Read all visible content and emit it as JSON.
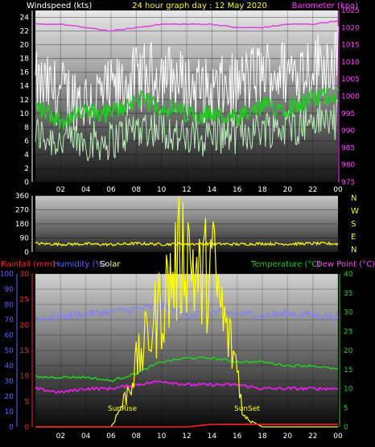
{
  "header": {
    "left": "Windspeed (kts)",
    "center": "24 hour graph day : 12 May 2020",
    "right": "Barometer (kpa)"
  },
  "colors": {
    "windspeed": "#ffffff",
    "windavg": "#22cc22",
    "gust": "#b8f0b8",
    "barometer": "#e040e0",
    "direction": "#ffff00",
    "rain": "#ff2020",
    "humidity": "#8080ff",
    "solar": "#ffff00",
    "temperature": "#22cc22",
    "dewpoint": "#e020e0",
    "axis_text": "#ff40ff",
    "rain_axis": "#ff2020",
    "humidity_axis": "#6060ff",
    "temp_axis": "#22cc22"
  },
  "chart_data": [
    {
      "type": "line",
      "title": "24 hour graph day : 12 May 2020",
      "ylabel_left": "Windspeed (kts)",
      "ylabel_right": "Barometer (kpa)",
      "xticks": [
        "02",
        "04",
        "06",
        "08",
        "10",
        "12",
        "14",
        "16",
        "18",
        "20",
        "22",
        "00"
      ],
      "y_left_ticks": [
        "0",
        "2",
        "4",
        "6",
        "8",
        "10",
        "12",
        "14",
        "16",
        "18",
        "20",
        "22",
        "24"
      ],
      "ylim_left": [
        0,
        25
      ],
      "y_right_ticks": [
        "975",
        "980",
        "985",
        "990",
        "995",
        "1000",
        "1005",
        "1010",
        "1015",
        "1020",
        "1025"
      ],
      "ylim_right": [
        975,
        1025
      ],
      "series": [
        {
          "name": "Windspeed",
          "x": [
            0,
            2,
            4,
            6,
            8,
            10,
            12,
            14,
            16,
            18,
            20,
            22,
            24
          ],
          "values": [
            14,
            13,
            12,
            13,
            15,
            16,
            14,
            13,
            14,
            16,
            16,
            17,
            18
          ]
        },
        {
          "name": "Wind average",
          "x": [
            0,
            2,
            4,
            6,
            8,
            10,
            12,
            14,
            16,
            18,
            20,
            22,
            24
          ],
          "values": [
            11,
            9,
            10,
            10,
            12,
            11,
            10,
            10,
            9,
            11,
            11,
            12,
            13
          ]
        },
        {
          "name": "Gust low",
          "x": [
            0,
            2,
            4,
            6,
            8,
            10,
            12,
            14,
            16,
            18,
            20,
            22,
            24
          ],
          "values": [
            7,
            6,
            6,
            6,
            8,
            8,
            6,
            7,
            7,
            8,
            8,
            9,
            9
          ]
        },
        {
          "name": "Barometer",
          "x": [
            0,
            2,
            4,
            6,
            8,
            10,
            12,
            14,
            16,
            18,
            20,
            22,
            24
          ],
          "values": [
            1021,
            1021,
            1020,
            1019,
            1020,
            1021,
            1021,
            1021,
            1020,
            1020,
            1021,
            1021,
            1022
          ]
        }
      ]
    },
    {
      "type": "line",
      "y_left_ticks": [
        "0",
        "90",
        "180",
        "270",
        "360"
      ],
      "ylim": [
        0,
        360
      ],
      "compass": [
        "N",
        "W",
        "S",
        "E",
        "N"
      ],
      "series": [
        {
          "name": "Wind direction",
          "x": [
            0,
            2,
            4,
            6,
            8,
            10,
            12,
            14,
            16,
            18,
            20,
            22,
            24
          ],
          "values": [
            55,
            50,
            52,
            48,
            55,
            50,
            52,
            53,
            50,
            54,
            52,
            55,
            53
          ]
        }
      ]
    },
    {
      "type": "line",
      "legend": [
        "Rainfall (mm)",
        "Humidity (%)",
        "Solar",
        "Temperature (°C)",
        "Dew Point (°C)"
      ],
      "xticks": [
        "02",
        "04",
        "06",
        "08",
        "10",
        "12",
        "14",
        "16",
        "18",
        "20",
        "22",
        "00"
      ],
      "humidity_ticks": [
        "0",
        "10",
        "20",
        "30",
        "40",
        "50",
        "60",
        "70",
        "80",
        "90",
        "100"
      ],
      "rain_ticks": [
        "0",
        "5",
        "10",
        "15",
        "20",
        "25",
        "30"
      ],
      "temp_ticks": [
        "0",
        "5",
        "10",
        "15",
        "20",
        "25",
        "30",
        "35",
        "40"
      ],
      "ylim_humidity": [
        0,
        100
      ],
      "ylim_rain": [
        0,
        30
      ],
      "ylim_temp": [
        0,
        40
      ],
      "annotations": [
        "SunRise",
        "SunSet"
      ],
      "series": [
        {
          "name": "Humidity",
          "x": [
            0,
            2,
            4,
            6,
            8,
            10,
            12,
            14,
            16,
            18,
            20,
            22,
            24
          ],
          "values": [
            71,
            72,
            74,
            75,
            77,
            79,
            73,
            75,
            74,
            73,
            74,
            73,
            72
          ]
        },
        {
          "name": "Temperature",
          "x": [
            0,
            2,
            4,
            6,
            8,
            10,
            12,
            14,
            16,
            18,
            20,
            22,
            24
          ],
          "values": [
            13,
            13,
            13,
            12,
            14,
            17,
            18,
            18,
            17,
            17,
            16,
            16,
            15
          ]
        },
        {
          "name": "Dew Point",
          "x": [
            0,
            2,
            4,
            6,
            8,
            10,
            12,
            14,
            16,
            18,
            20,
            22,
            24
          ],
          "values": [
            10,
            9,
            10,
            10,
            11,
            12,
            11,
            11,
            11,
            10,
            10,
            10,
            10
          ]
        },
        {
          "name": "Solar",
          "x": [
            0,
            2,
            4,
            6,
            7,
            8,
            9,
            10,
            11,
            12,
            13,
            14,
            15,
            16,
            16.5,
            18,
            20,
            22,
            24
          ],
          "values": [
            0,
            0,
            0,
            0,
            5,
            12,
            18,
            24,
            30,
            36,
            28,
            32,
            20,
            12,
            2,
            0,
            0,
            0,
            0
          ]
        },
        {
          "name": "Rainfall",
          "x": [
            0,
            2,
            4,
            6,
            8,
            10,
            12,
            14,
            16,
            18,
            20,
            22,
            24
          ],
          "values": [
            0,
            0,
            0,
            0,
            0,
            0,
            0,
            0.5,
            0.5,
            0.5,
            0.5,
            0.5,
            0.5
          ]
        }
      ]
    }
  ]
}
